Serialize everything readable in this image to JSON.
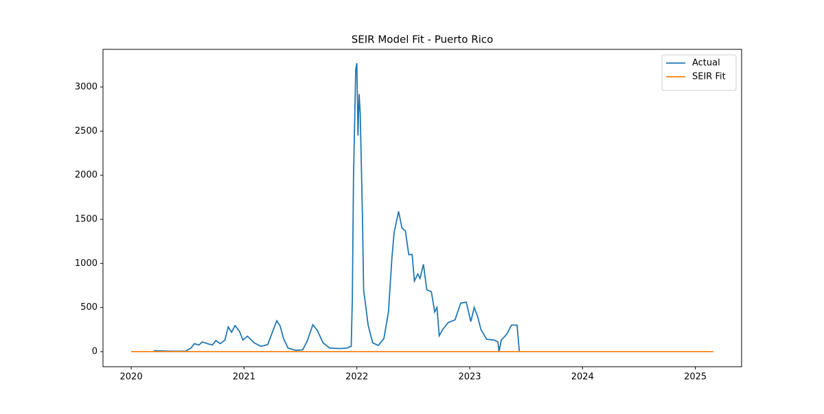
{
  "chart_data": {
    "type": "line",
    "title": "SEIR Model Fit - Puerto Rico",
    "series": [
      {
        "name": "Actual",
        "color": "#1f77b4",
        "x": [
          2020.2,
          2020.36,
          2020.48,
          2020.53,
          2020.56,
          2020.6,
          2020.63,
          2020.69,
          2020.72,
          2020.75,
          2020.79,
          2020.83,
          2020.86,
          2020.89,
          2020.92,
          2020.96,
          2020.99,
          2021.03,
          2021.09,
          2021.15,
          2021.21,
          2021.26,
          2021.29,
          2021.32,
          2021.35,
          2021.39,
          2021.46,
          2021.52,
          2021.56,
          2021.61,
          2021.65,
          2021.7,
          2021.76,
          2021.85,
          2021.91,
          2021.95,
          2021.96,
          2021.97,
          2021.99,
          2022.0,
          2022.01,
          2022.02,
          2022.03,
          2022.05,
          2022.06,
          2022.1,
          2022.14,
          2022.19,
          2022.24,
          2022.28,
          2022.31,
          2022.33,
          2022.37,
          2022.4,
          2022.43,
          2022.46,
          2022.49,
          2022.51,
          2022.54,
          2022.56,
          2022.59,
          2022.62,
          2022.66,
          2022.69,
          2022.71,
          2022.73,
          2022.76,
          2022.81,
          2022.87,
          2022.92,
          2022.97,
          2023.01,
          2023.04,
          2023.07,
          2023.1,
          2023.15,
          2023.22,
          2023.25,
          2023.26,
          2023.28,
          2023.33,
          2023.37,
          2023.42,
          2023.43,
          2023.44
        ],
        "values": [
          10,
          5,
          5,
          40,
          90,
          75,
          110,
          85,
          75,
          125,
          90,
          130,
          280,
          220,
          295,
          230,
          130,
          175,
          100,
          60,
          80,
          250,
          350,
          290,
          150,
          40,
          15,
          20,
          120,
          305,
          240,
          100,
          40,
          35,
          40,
          60,
          600,
          1950,
          3200,
          3270,
          2450,
          2920,
          2700,
          1500,
          700,
          300,
          100,
          70,
          150,
          450,
          1050,
          1350,
          1590,
          1400,
          1370,
          1100,
          1100,
          800,
          880,
          830,
          990,
          700,
          680,
          450,
          500,
          180,
          250,
          330,
          360,
          550,
          560,
          340,
          500,
          400,
          250,
          140,
          130,
          110,
          0,
          130,
          200,
          300,
          300,
          150,
          0
        ]
      },
      {
        "name": "SEIR Fit",
        "color": "#ff7f0e",
        "x": [
          2020.0,
          2025.16
        ],
        "values": [
          0,
          0
        ]
      }
    ],
    "xlim": [
      2019.75,
      2025.41
    ],
    "xticks": [
      2020,
      2021,
      2022,
      2023,
      2024,
      2025
    ],
    "ylim": [
      -171,
      3427
    ],
    "yticks": [
      0,
      500,
      1000,
      1500,
      2000,
      2500,
      3000
    ],
    "legend": "upper right"
  }
}
